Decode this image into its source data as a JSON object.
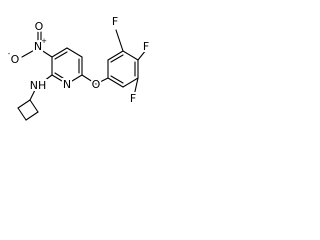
{
  "atoms": [
    {
      "label": "N",
      "charge": "+"
    },
    {
      "label": "O"
    },
    {
      "label": "O",
      "charge": "-"
    },
    {
      "label": "NH"
    },
    {
      "label": "N"
    },
    {
      "label": "O"
    },
    {
      "label": "F"
    },
    {
      "label": "F"
    },
    {
      "label": "F"
    }
  ]
}
